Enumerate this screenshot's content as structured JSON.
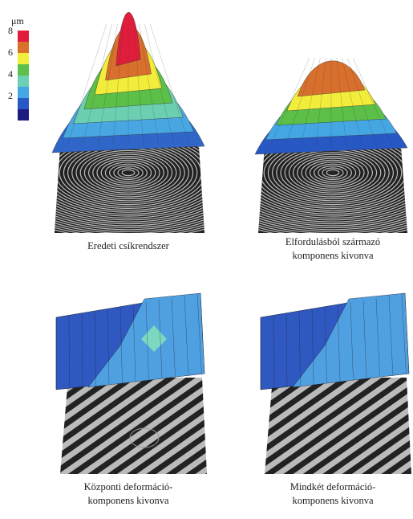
{
  "colorbar": {
    "unit": "μm",
    "ticks": [
      8,
      6,
      4,
      2
    ],
    "colors": [
      "#e01e3c",
      "#d9702c",
      "#f2ee3c",
      "#5cc04a",
      "#6cd0b4",
      "#45a6e4",
      "#2858c4",
      "#1c1c80"
    ]
  },
  "panels": [
    {
      "caption": [
        "Eredeti csíkrendszer"
      ]
    },
    {
      "caption": [
        "Elfordulásból származó",
        "komponens kivonva"
      ]
    },
    {
      "caption": [
        "Központi deformáció-",
        "komponens kivonva"
      ]
    },
    {
      "caption": [
        "Mindkét deformáció-",
        "komponens kivonva"
      ]
    }
  ]
}
